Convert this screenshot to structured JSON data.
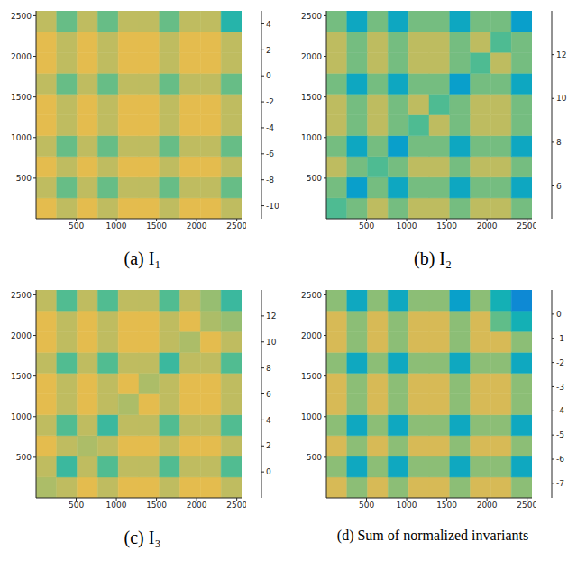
{
  "chart_data": [
    {
      "type": "heatmap",
      "title": "(a) I₁",
      "xlim": [
        0,
        2560
      ],
      "ylim": [
        0,
        2560
      ],
      "xticks": [
        500,
        1000,
        1500,
        2000,
        2500
      ],
      "yticks": [
        500,
        1000,
        1500,
        2000,
        2500
      ],
      "x_edges": [
        0,
        256,
        512,
        768,
        1024,
        1280,
        1536,
        1792,
        2048,
        2304,
        2560
      ],
      "y_edges": [
        0,
        256,
        512,
        768,
        1024,
        1280,
        1536,
        1792,
        2048,
        2304,
        2560
      ],
      "cells": [
        [
          3.5,
          2.5,
          3.5,
          2.5,
          3.5,
          3.5,
          2.5,
          3.5,
          3.5,
          2.5
        ],
        [
          2.5,
          0.5,
          2.5,
          0.5,
          2.5,
          2.5,
          0.5,
          2.5,
          2.5,
          0.5
        ],
        [
          3.5,
          2.5,
          3.5,
          2.5,
          3.5,
          3.5,
          2.5,
          3.5,
          3.5,
          2.5
        ],
        [
          2.5,
          0.5,
          2.5,
          0.5,
          2.5,
          2.5,
          0.5,
          2.5,
          2.5,
          0.5
        ],
        [
          3.5,
          2.5,
          3.5,
          2.5,
          3.5,
          3.5,
          2.5,
          3.5,
          3.5,
          2.5
        ],
        [
          3.5,
          2.5,
          3.5,
          2.5,
          3.5,
          3.5,
          2.5,
          3.5,
          3.5,
          2.5
        ],
        [
          2.5,
          0.5,
          2.5,
          0.5,
          2.5,
          2.5,
          0.5,
          2.5,
          2.5,
          0.5
        ],
        [
          3.5,
          2.5,
          3.5,
          2.5,
          3.5,
          3.5,
          2.5,
          3.5,
          3.5,
          2.5
        ],
        [
          3.5,
          2.5,
          3.5,
          2.5,
          3.5,
          3.5,
          2.5,
          3.5,
          3.5,
          2.5
        ],
        [
          2.5,
          0.5,
          2.5,
          0.5,
          2.5,
          2.5,
          0.5,
          2.5,
          2.5,
          -1
        ]
      ],
      "colorbar": {
        "range": [
          -11,
          5
        ],
        "ticks": [
          -10,
          -8,
          -6,
          -4,
          -2,
          0,
          2,
          4
        ]
      }
    },
    {
      "type": "heatmap",
      "title": "(b) I₂",
      "xlim": [
        0,
        2560
      ],
      "ylim": [
        0,
        2560
      ],
      "xticks": [
        500,
        1000,
        1500,
        2000,
        2500
      ],
      "yticks": [
        500,
        1000,
        1500,
        2000,
        2500
      ],
      "x_edges": [
        0,
        256,
        512,
        768,
        1024,
        1280,
        1536,
        1792,
        2048,
        2304,
        2560
      ],
      "y_edges": [
        0,
        256,
        512,
        768,
        1024,
        1280,
        1536,
        1792,
        2048,
        2304,
        2560
      ],
      "cells": [
        [
          11,
          11.5,
          12.5,
          11.5,
          12.5,
          12.5,
          11.5,
          12.5,
          12.5,
          11.5
        ],
        [
          11.5,
          9,
          11.5,
          9.5,
          11.5,
          11.5,
          9.5,
          11.5,
          11.5,
          9.5
        ],
        [
          12.5,
          11.5,
          11,
          11.5,
          12.5,
          12.5,
          11.5,
          12.5,
          12.5,
          11.5
        ],
        [
          11.5,
          9.5,
          11.5,
          9,
          11.5,
          11.5,
          9.5,
          11.5,
          11.5,
          9.5
        ],
        [
          12.5,
          11.5,
          12.5,
          11.5,
          11,
          12.5,
          11.5,
          12.5,
          12.5,
          11.5
        ],
        [
          12.5,
          11.5,
          12.5,
          11.5,
          12.5,
          11,
          11.5,
          12.5,
          12.5,
          11.5
        ],
        [
          11.5,
          9.5,
          11.5,
          9.5,
          11.5,
          11.5,
          9,
          11.5,
          11.5,
          9.5
        ],
        [
          12.5,
          11.5,
          12.5,
          11.5,
          12.5,
          12.5,
          11.5,
          11,
          12.5,
          11.5
        ],
        [
          12.5,
          11.5,
          12.5,
          11.5,
          12.5,
          12.5,
          11.5,
          12.5,
          11,
          11.5
        ],
        [
          11.5,
          9.5,
          11.5,
          9.5,
          11.5,
          11.5,
          9.5,
          11.5,
          11.5,
          9
        ]
      ],
      "colorbar": {
        "range": [
          4.5,
          14
        ],
        "ticks": [
          6,
          8,
          10,
          12
        ]
      }
    },
    {
      "type": "heatmap",
      "title": "(c) I₃",
      "xlim": [
        0,
        2560
      ],
      "ylim": [
        0,
        2560
      ],
      "xticks": [
        500,
        1000,
        1500,
        2000,
        2500
      ],
      "yticks": [
        500,
        1000,
        1500,
        2000,
        2500
      ],
      "x_edges": [
        0,
        256,
        512,
        768,
        1024,
        1280,
        1536,
        1792,
        2048,
        2304,
        2560
      ],
      "y_edges": [
        0,
        256,
        512,
        768,
        1024,
        1280,
        1536,
        1792,
        2048,
        2304,
        2560
      ],
      "cells": [
        [
          11,
          11.5,
          12.5,
          11.5,
          12.5,
          12.5,
          11.5,
          12.5,
          12.5,
          11.5
        ],
        [
          11.5,
          8.5,
          11.5,
          9,
          11.5,
          11.5,
          9,
          11.5,
          11.5,
          9
        ],
        [
          12.5,
          11.5,
          11,
          11.5,
          12.5,
          12.5,
          11.5,
          12.5,
          12.5,
          11.5
        ],
        [
          11.5,
          9,
          11.5,
          8.5,
          11.5,
          11.5,
          9,
          11.5,
          11.5,
          9
        ],
        [
          12.5,
          11.5,
          12.5,
          11.5,
          11,
          12.5,
          11.5,
          12.5,
          12.5,
          11.5
        ],
        [
          12.5,
          11.5,
          12.5,
          11.5,
          12.5,
          11,
          11.5,
          12.5,
          12.5,
          11.5
        ],
        [
          11.5,
          9,
          11.5,
          9,
          11.5,
          11.5,
          8.5,
          11.5,
          11.5,
          9
        ],
        [
          12.5,
          11.5,
          12.5,
          11.5,
          12.5,
          12.5,
          11.5,
          11,
          12.5,
          11.5
        ],
        [
          12.5,
          11.5,
          12.5,
          11.5,
          12.5,
          12.5,
          11.5,
          12.5,
          11,
          10.5
        ],
        [
          11.5,
          9,
          11.5,
          9,
          11.5,
          11.5,
          9,
          11.5,
          10.5,
          8.5
        ]
      ],
      "colorbar": {
        "range": [
          -2,
          14
        ],
        "ticks": [
          0,
          2,
          4,
          6,
          8,
          10,
          12
        ]
      }
    },
    {
      "type": "heatmap",
      "title": "(d) Sum of normalized invariants",
      "xlim": [
        0,
        2560
      ],
      "ylim": [
        0,
        2560
      ],
      "xticks": [
        500,
        1000,
        1500,
        2000,
        2500
      ],
      "yticks": [
        500,
        1000,
        1500,
        2000,
        2500
      ],
      "x_edges": [
        0,
        256,
        512,
        768,
        1024,
        1280,
        1536,
        1792,
        2048,
        2304,
        2560
      ],
      "y_edges": [
        0,
        256,
        512,
        768,
        1024,
        1280,
        1536,
        1792,
        2048,
        2304,
        2560
      ],
      "cells": [
        [
          0,
          -1,
          0,
          -1,
          0,
          0,
          -1,
          0,
          0,
          -1
        ],
        [
          -1,
          -3,
          -1,
          -3,
          -1,
          -1,
          -3,
          -1,
          -1,
          -3
        ],
        [
          0,
          -1,
          0,
          -1,
          0,
          0,
          -1,
          0,
          0,
          -1
        ],
        [
          -1,
          -3,
          -1,
          -3,
          -1,
          -1,
          -3,
          -1,
          -1,
          -3
        ],
        [
          0,
          -1,
          0,
          -1,
          0,
          0,
          -1,
          0,
          0,
          -1
        ],
        [
          0,
          -1,
          0,
          -1,
          0,
          0,
          -1,
          0,
          0,
          -1
        ],
        [
          -1,
          -3,
          -1,
          -3,
          -1,
          -1,
          -3,
          -1,
          -1,
          -3
        ],
        [
          0,
          -1,
          0,
          -1,
          0,
          0,
          -1,
          0,
          0,
          -1
        ],
        [
          0,
          -1,
          0,
          -1,
          0,
          0,
          -1,
          0,
          -1.5,
          -2.5
        ],
        [
          -1,
          -3,
          -1,
          -3,
          -1,
          -1,
          -3.5,
          -1,
          -2.5,
          -4.5
        ]
      ],
      "colorbar": {
        "range": [
          -7.6,
          1
        ],
        "ticks": [
          -7,
          -6,
          -5,
          -4,
          -3,
          -2,
          -1,
          0
        ]
      }
    }
  ]
}
